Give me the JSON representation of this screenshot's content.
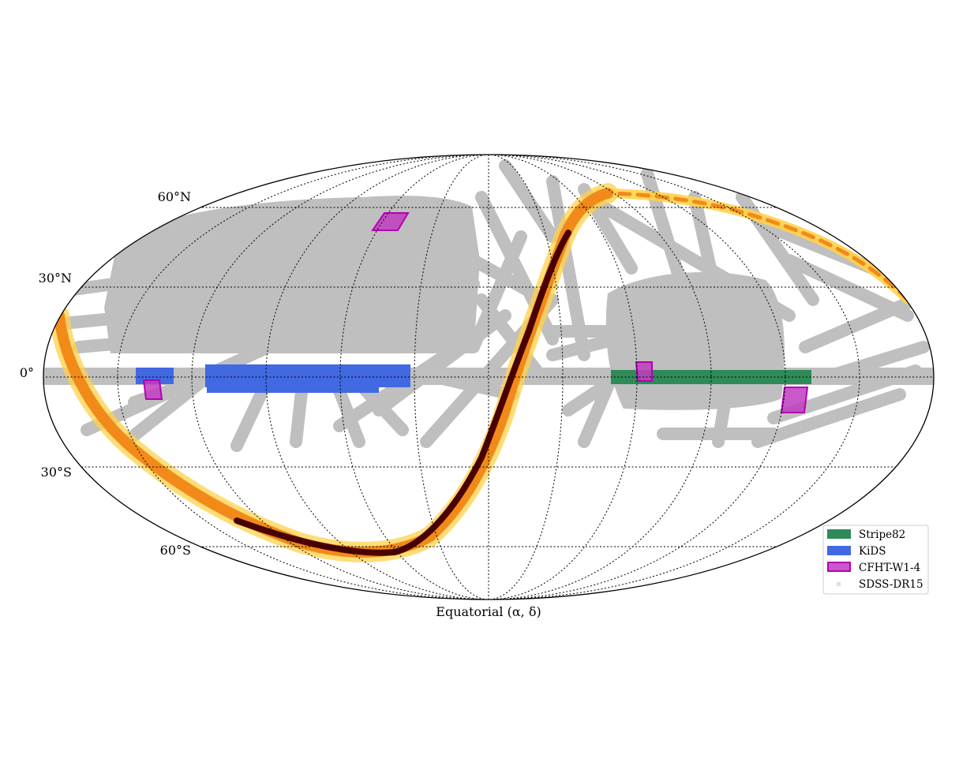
{
  "projection": "mollweide",
  "lat_labels": [
    "60°N",
    "30°N",
    "0°",
    "30°S",
    "60°S"
  ],
  "x_label": "Equatorial (α, δ)",
  "legend": [
    {
      "name": "Stripe82",
      "color": "#2e8b57",
      "kind": "patch"
    },
    {
      "name": "KiDS",
      "color": "#4169e1",
      "kind": "patch"
    },
    {
      "name": "CFHT-W1-4",
      "color": "#bf3cbf",
      "edge": "#b400b4",
      "kind": "patch"
    },
    {
      "name": "SDSS-DR15",
      "color": "#bfbfbf",
      "kind": "marker"
    }
  ],
  "colors": {
    "sdss": "#bfbfbf",
    "stripe82": "#2e8b57",
    "kids": "#4169e1",
    "cfht_fill": "#bf3cbf",
    "cfht_edge": "#b400b4",
    "density_low": "#ffe566",
    "density_mid": "#f28a1a",
    "density_high": "#4a0000"
  },
  "grid": {
    "meridians": "dotted",
    "parallels": [
      -60,
      -30,
      0,
      30,
      60
    ]
  }
}
